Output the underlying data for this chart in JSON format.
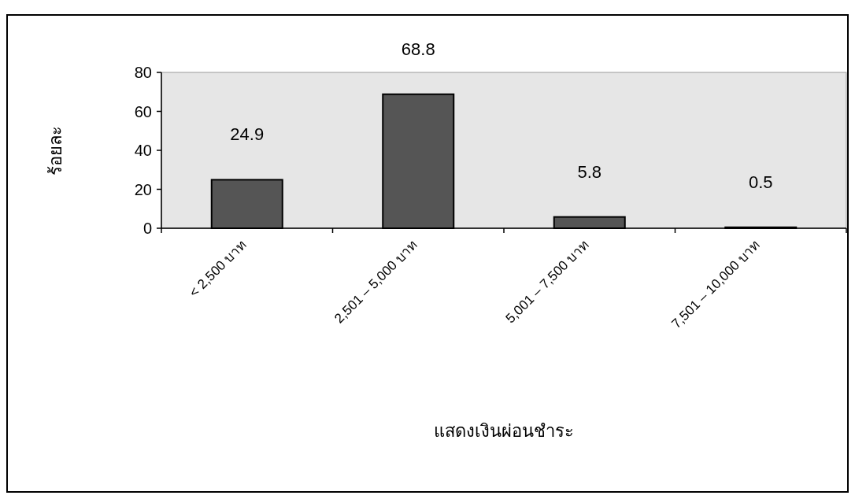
{
  "chart_data": {
    "type": "bar",
    "categories": [
      "< 2,500 บาท",
      "2,501 – 5,000 บาท",
      "5,001 – 7,500 บาท",
      "7,501 – 10,000 บาท"
    ],
    "values": [
      24.9,
      68.8,
      5.8,
      0.5
    ],
    "color": "#555555",
    "ylim": [
      0,
      80
    ],
    "yticks": [
      0,
      20,
      40,
      60,
      80
    ],
    "ylabel": "ร้อยละ",
    "annotations": [
      "แสดงเงินผ่อนชำระ"
    ],
    "data_labels": true
  }
}
